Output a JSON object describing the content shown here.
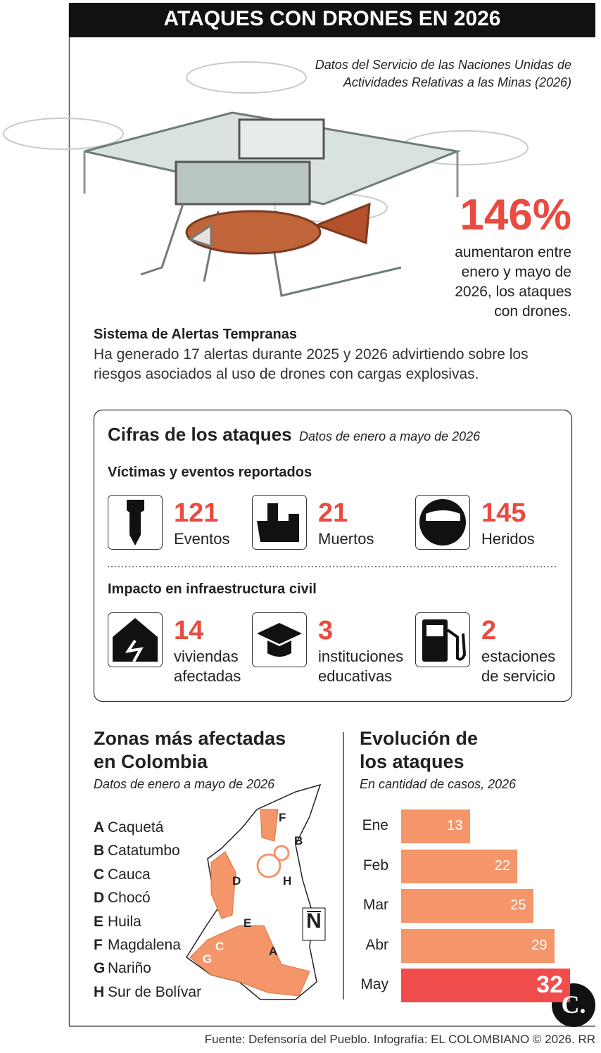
{
  "header": {
    "title": "ATAQUES CON DRONES EN 2026"
  },
  "source_note": "Datos del Servicio de las Naciones Unidas de Actividades Relativas a las Minas (2026)",
  "highlight": {
    "value": "146%",
    "text": "aumentaron entre enero y mayo de 2026, los ataques con drones."
  },
  "alerts": {
    "title": "Sistema de Alertas Tempranas",
    "text": "Ha generado 17 alertas durante 2025 y 2026 advirtiendo sobre los riesgos asociados al uso de drones con cargas explosivas."
  },
  "figures": {
    "title": "Cifras de los ataques",
    "subtitle": "Datos de enero a mayo de 2026",
    "victims_title": "Víctimas y eventos reportados",
    "victims": [
      {
        "value": 121,
        "label": "Eventos"
      },
      {
        "value": 21,
        "label": "Muertos"
      },
      {
        "value": 145,
        "label": "Heridos"
      }
    ],
    "infrastructure_title": "Impacto en infraestructura civil",
    "infrastructure": [
      {
        "value": 14,
        "label": "viviendas afectadas"
      },
      {
        "value": 3,
        "label": "instituciones educativas"
      },
      {
        "value": 2,
        "label": "estaciones de servicio"
      }
    ]
  },
  "map": {
    "title": "Zonas más afectadas en Colombia",
    "subtitle": "Datos de enero a mayo de 2026",
    "north": "N",
    "zones": [
      {
        "letter": "A",
        "name": "Caquetá"
      },
      {
        "letter": "B",
        "name": "Catatumbo"
      },
      {
        "letter": "C",
        "name": "Cauca"
      },
      {
        "letter": "D",
        "name": "Chocó"
      },
      {
        "letter": "E",
        "name": "Huila"
      },
      {
        "letter": "F",
        "name": "Magdalena"
      },
      {
        "letter": "G",
        "name": "Nariño"
      },
      {
        "letter": "H",
        "name": "Sur de Bolívar"
      }
    ]
  },
  "chart_data": {
    "type": "bar",
    "orientation": "horizontal",
    "title": "Evolución de los ataques",
    "subtitle": "En cantidad de casos, 2026",
    "categories": [
      "Ene",
      "Feb",
      "Mar",
      "Abr",
      "May"
    ],
    "values": [
      13,
      22,
      25,
      29,
      32
    ],
    "colors": [
      "#f4956a",
      "#f4956a",
      "#f4956a",
      "#f4956a",
      "#f04c4c"
    ]
  },
  "footer": "Fuente: Defensoría del Pueblo. Infografía: EL COLOMBIANO © 2026. RR",
  "logo": "C."
}
